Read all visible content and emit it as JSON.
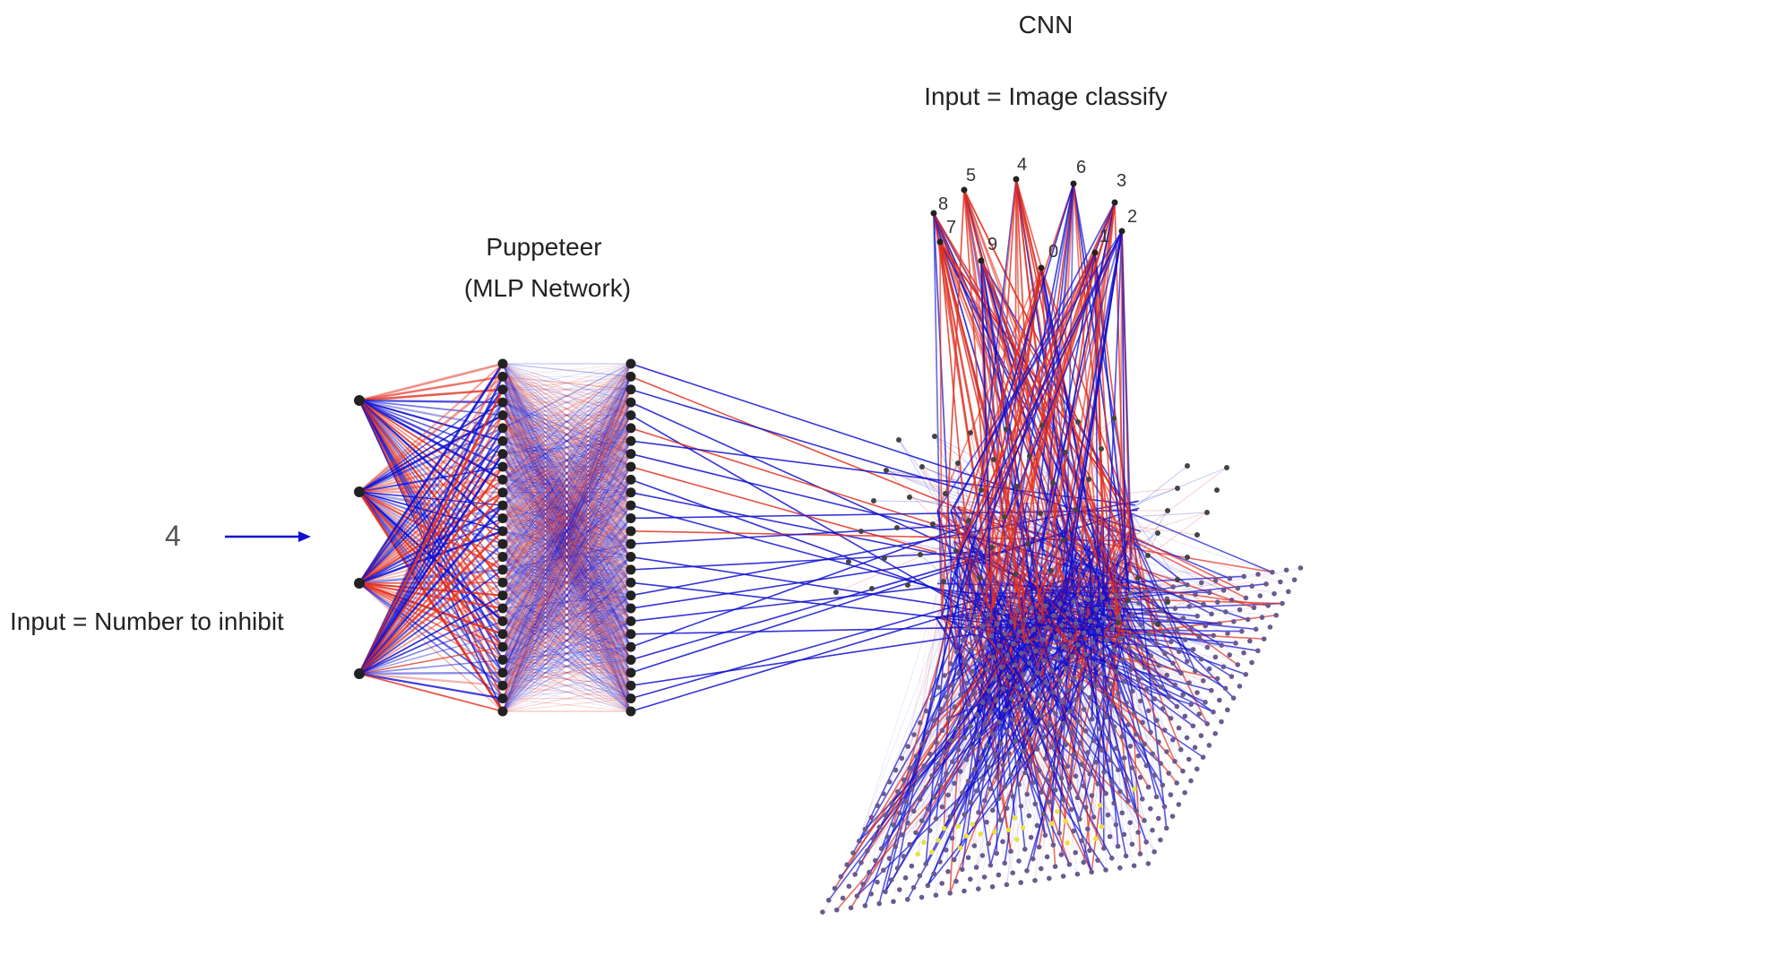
{
  "cnn": {
    "title": "CNN",
    "input_label": "Input = Image classify",
    "output_labels": [
      "8",
      "7",
      "5",
      "9",
      "4",
      "0",
      "6",
      "1",
      "3",
      "2"
    ]
  },
  "puppeteer": {
    "title": "Puppeteer",
    "subtitle": "(MLP Network)"
  },
  "input": {
    "digit": "4",
    "label": "Input = Number to inhibit"
  },
  "colors": {
    "positive": "#e03020",
    "negative": "#1010d0",
    "node": "#222222",
    "grid_node": "#6a5a90",
    "highlight_node": "#e8e040",
    "arrow": "#1010d0"
  }
}
